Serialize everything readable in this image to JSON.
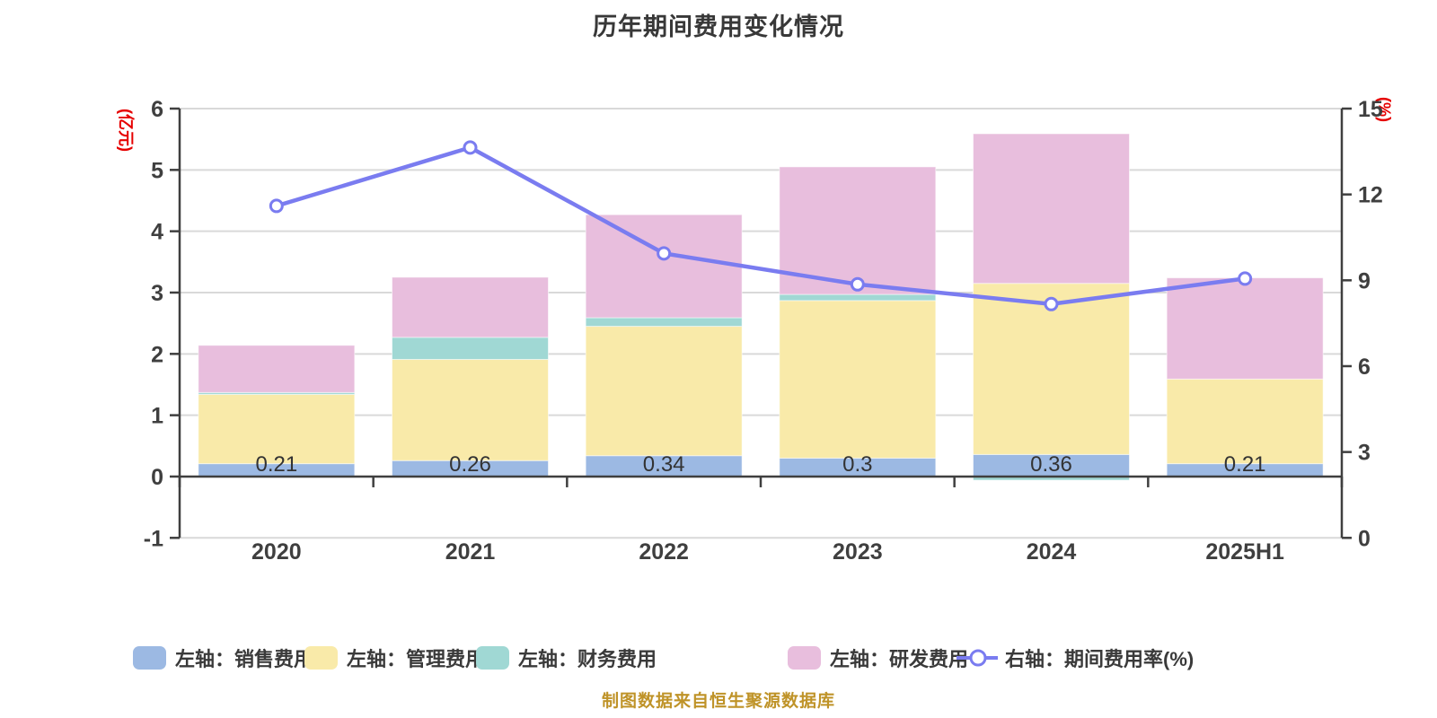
{
  "title": "历年期间费用变化情况",
  "caption": "制图数据来自恒生聚源数据库",
  "left_axis": {
    "unit": "(亿元)",
    "min": -1,
    "max": 6,
    "ticks": [
      6,
      5,
      4,
      3,
      2,
      1,
      0,
      -1
    ]
  },
  "right_axis": {
    "unit": "(%)",
    "min": 0,
    "max": 15,
    "ticks": [
      15,
      12,
      9,
      6,
      3,
      0
    ]
  },
  "legend": [
    {
      "label": "左轴：销售费用",
      "type": "bar",
      "color": "#9cb9e3"
    },
    {
      "label": "左轴：管理费用",
      "type": "bar",
      "color": "#f9eaa9"
    },
    {
      "label": "左轴：财务费用",
      "type": "bar",
      "color": "#a0d8d4"
    },
    {
      "label": "左轴：研发费用",
      "type": "bar",
      "color": "#e8bedd"
    },
    {
      "label": "右轴：期间费用率(%)",
      "type": "line",
      "color": "#7a7cf0"
    }
  ],
  "chart_data": {
    "type": "bar+line",
    "title": "历年期间费用变化情况",
    "categories": [
      "2020",
      "2021",
      "2022",
      "2023",
      "2024",
      "2025H1"
    ],
    "left_ylim": [
      -1,
      6
    ],
    "right_ylim": [
      0,
      15
    ],
    "grid": true,
    "legend_position": "bottom",
    "series": [
      {
        "name": "销售费用",
        "axis": "left",
        "type": "bar",
        "color": "#9cb9e3",
        "values": [
          0.21,
          0.26,
          0.34,
          0.3,
          0.36,
          0.21
        ],
        "labels": [
          "0.21",
          "0.26",
          "0.34",
          "0.3",
          "0.36",
          "0.21"
        ]
      },
      {
        "name": "管理费用",
        "axis": "left",
        "type": "bar",
        "color": "#f9eaa9",
        "values": [
          1.13,
          1.65,
          2.11,
          2.57,
          2.79,
          1.38
        ]
      },
      {
        "name": "财务费用",
        "axis": "left",
        "type": "bar",
        "color": "#a0d8d4",
        "values": [
          0.03,
          0.36,
          0.14,
          0.1,
          -0.06,
          0.01
        ]
      },
      {
        "name": "研发费用",
        "axis": "left",
        "type": "bar",
        "color": "#e8bedd",
        "values": [
          0.77,
          0.98,
          1.68,
          2.08,
          2.44,
          1.65
        ]
      },
      {
        "name": "期间费用率(%)",
        "axis": "right",
        "type": "line",
        "color": "#7a7cf0",
        "marker": "circle",
        "values": [
          11.6,
          13.64,
          9.94,
          8.86,
          8.17,
          9.06
        ]
      }
    ]
  },
  "colors": {
    "grid": "#d9d9d9",
    "axis": "#3f3f3f",
    "tick_text": "#3f3f3f",
    "bar_label": "#333333",
    "axis_unit": "#e60000",
    "marker_fill": "#ffffff"
  }
}
